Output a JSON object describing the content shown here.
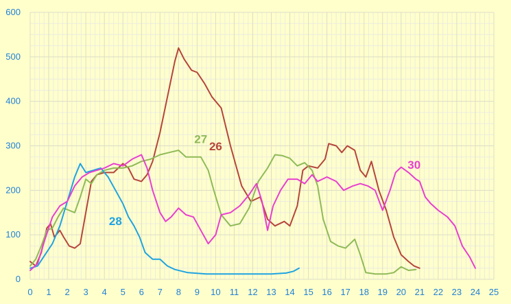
{
  "chart_data": {
    "type": "line",
    "title": "",
    "xlabel": "",
    "ylabel": "",
    "xlim": [
      0,
      25
    ],
    "ylim": [
      0,
      600
    ],
    "xticks": [
      0,
      1,
      2,
      3,
      4,
      5,
      6,
      7,
      8,
      9,
      10,
      11,
      12,
      13,
      14,
      15,
      16,
      17,
      18,
      19,
      20,
      21,
      22,
      23,
      24,
      25
    ],
    "yticks": [
      0,
      100,
      200,
      300,
      400,
      500,
      600
    ],
    "grid": true,
    "minor_grid": true,
    "legend": "none",
    "colors": {
      "background": "#ffffcc",
      "grid_major": "#dcdcc8",
      "grid_minor": "#ecece0",
      "tick_text": "#1f7fd6"
    },
    "series": [
      {
        "name": "26",
        "color": "#b5453a",
        "label_at": [
          10.0,
          290
        ],
        "points": [
          [
            0,
            40
          ],
          [
            0.3,
            30
          ],
          [
            0.6,
            60
          ],
          [
            0.9,
            115
          ],
          [
            1.1,
            125
          ],
          [
            1.3,
            95
          ],
          [
            1.6,
            110
          ],
          [
            1.8,
            95
          ],
          [
            2.1,
            75
          ],
          [
            2.4,
            70
          ],
          [
            2.7,
            80
          ],
          [
            3.0,
            150
          ],
          [
            3.3,
            220
          ],
          [
            3.6,
            235
          ],
          [
            4.0,
            240
          ],
          [
            4.5,
            240
          ],
          [
            5.0,
            260
          ],
          [
            5.3,
            250
          ],
          [
            5.6,
            225
          ],
          [
            6.0,
            220
          ],
          [
            6.3,
            235
          ],
          [
            6.6,
            265
          ],
          [
            7.0,
            330
          ],
          [
            7.4,
            410
          ],
          [
            7.8,
            490
          ],
          [
            8.0,
            520
          ],
          [
            8.3,
            495
          ],
          [
            8.7,
            470
          ],
          [
            9.0,
            465
          ],
          [
            9.4,
            440
          ],
          [
            9.8,
            410
          ],
          [
            10.3,
            385
          ],
          [
            10.8,
            300
          ],
          [
            11.4,
            210
          ],
          [
            11.9,
            175
          ],
          [
            12.4,
            185
          ],
          [
            12.8,
            135
          ],
          [
            13.2,
            120
          ],
          [
            13.7,
            130
          ],
          [
            14.0,
            120
          ],
          [
            14.4,
            165
          ],
          [
            14.7,
            245
          ],
          [
            15.0,
            255
          ],
          [
            15.5,
            250
          ],
          [
            15.9,
            270
          ],
          [
            16.1,
            305
          ],
          [
            16.5,
            300
          ],
          [
            16.8,
            285
          ],
          [
            17.1,
            300
          ],
          [
            17.5,
            290
          ],
          [
            17.8,
            245
          ],
          [
            18.1,
            230
          ],
          [
            18.4,
            265
          ],
          [
            18.8,
            200
          ],
          [
            19.2,
            155
          ],
          [
            19.6,
            95
          ],
          [
            20.0,
            55
          ],
          [
            20.4,
            40
          ],
          [
            20.7,
            30
          ],
          [
            21.0,
            25
          ]
        ]
      },
      {
        "name": "27",
        "color": "#8fba57",
        "label_at": [
          9.2,
          306
        ],
        "points": [
          [
            0,
            30
          ],
          [
            0.3,
            45
          ],
          [
            0.6,
            75
          ],
          [
            0.9,
            110
          ],
          [
            1.2,
            115
          ],
          [
            1.5,
            140
          ],
          [
            1.8,
            160
          ],
          [
            2.1,
            155
          ],
          [
            2.4,
            150
          ],
          [
            2.7,
            185
          ],
          [
            3.0,
            225
          ],
          [
            3.3,
            215
          ],
          [
            3.6,
            235
          ],
          [
            4.0,
            245
          ],
          [
            4.5,
            250
          ],
          [
            5.0,
            250
          ],
          [
            5.5,
            255
          ],
          [
            6.0,
            265
          ],
          [
            6.5,
            270
          ],
          [
            7.0,
            280
          ],
          [
            7.5,
            285
          ],
          [
            8.0,
            290
          ],
          [
            8.4,
            275
          ],
          [
            8.8,
            275
          ],
          [
            9.2,
            275
          ],
          [
            9.6,
            245
          ],
          [
            9.9,
            200
          ],
          [
            10.3,
            145
          ],
          [
            10.8,
            120
          ],
          [
            11.3,
            125
          ],
          [
            11.8,
            160
          ],
          [
            12.3,
            220
          ],
          [
            12.8,
            250
          ],
          [
            13.2,
            280
          ],
          [
            13.6,
            278
          ],
          [
            14.0,
            272
          ],
          [
            14.4,
            255
          ],
          [
            14.8,
            262
          ],
          [
            15.2,
            245
          ],
          [
            15.5,
            210
          ],
          [
            15.8,
            135
          ],
          [
            16.2,
            85
          ],
          [
            16.6,
            75
          ],
          [
            17.0,
            70
          ],
          [
            17.5,
            90
          ],
          [
            17.8,
            55
          ],
          [
            18.1,
            15
          ],
          [
            18.6,
            12
          ],
          [
            19.2,
            12
          ],
          [
            19.6,
            15
          ],
          [
            20.0,
            28
          ],
          [
            20.4,
            20
          ],
          [
            20.8,
            22
          ]
        ]
      },
      {
        "name": "28",
        "color": "#1fa3e0",
        "label_at": [
          4.6,
          122
        ],
        "points": [
          [
            0,
            25
          ],
          [
            0.4,
            30
          ],
          [
            0.8,
            55
          ],
          [
            1.2,
            80
          ],
          [
            1.6,
            120
          ],
          [
            2.0,
            175
          ],
          [
            2.4,
            230
          ],
          [
            2.7,
            260
          ],
          [
            3.0,
            240
          ],
          [
            3.4,
            245
          ],
          [
            3.8,
            250
          ],
          [
            4.2,
            230
          ],
          [
            4.6,
            200
          ],
          [
            5.0,
            170
          ],
          [
            5.3,
            140
          ],
          [
            5.6,
            120
          ],
          [
            5.9,
            95
          ],
          [
            6.2,
            60
          ],
          [
            6.6,
            45
          ],
          [
            7.0,
            45
          ],
          [
            7.4,
            30
          ],
          [
            7.8,
            22
          ],
          [
            8.5,
            15
          ],
          [
            9.5,
            12
          ],
          [
            11.0,
            12
          ],
          [
            12.0,
            12
          ],
          [
            13.0,
            12
          ],
          [
            13.8,
            14
          ],
          [
            14.2,
            18
          ],
          [
            14.5,
            25
          ]
        ]
      },
      {
        "name": "30",
        "color": "#e83fcf",
        "label_at": [
          20.7,
          248
        ],
        "points": [
          [
            0,
            20
          ],
          [
            0.4,
            35
          ],
          [
            0.8,
            90
          ],
          [
            1.2,
            140
          ],
          [
            1.6,
            165
          ],
          [
            2.0,
            175
          ],
          [
            2.4,
            210
          ],
          [
            2.8,
            230
          ],
          [
            3.2,
            240
          ],
          [
            3.6,
            245
          ],
          [
            4.0,
            250
          ],
          [
            4.5,
            260
          ],
          [
            5.0,
            255
          ],
          [
            5.5,
            270
          ],
          [
            6.0,
            280
          ],
          [
            6.3,
            250
          ],
          [
            6.6,
            200
          ],
          [
            7.0,
            150
          ],
          [
            7.3,
            130
          ],
          [
            7.6,
            140
          ],
          [
            8.0,
            160
          ],
          [
            8.4,
            145
          ],
          [
            8.8,
            140
          ],
          [
            9.2,
            110
          ],
          [
            9.6,
            80
          ],
          [
            10.0,
            100
          ],
          [
            10.3,
            145
          ],
          [
            10.8,
            150
          ],
          [
            11.3,
            165
          ],
          [
            11.8,
            190
          ],
          [
            12.2,
            215
          ],
          [
            12.5,
            175
          ],
          [
            12.8,
            110
          ],
          [
            13.1,
            165
          ],
          [
            13.5,
            200
          ],
          [
            13.9,
            225
          ],
          [
            14.4,
            225
          ],
          [
            14.8,
            215
          ],
          [
            15.2,
            235
          ],
          [
            15.5,
            220
          ],
          [
            16.0,
            230
          ],
          [
            16.5,
            220
          ],
          [
            16.9,
            200
          ],
          [
            17.4,
            210
          ],
          [
            17.8,
            215
          ],
          [
            18.2,
            210
          ],
          [
            18.6,
            200
          ],
          [
            19.0,
            155
          ],
          [
            19.4,
            200
          ],
          [
            19.7,
            240
          ],
          [
            20.0,
            252
          ],
          [
            20.4,
            240
          ],
          [
            20.8,
            225
          ],
          [
            21.0,
            220
          ],
          [
            21.3,
            185
          ],
          [
            21.6,
            170
          ],
          [
            22.0,
            155
          ],
          [
            22.5,
            140
          ],
          [
            22.9,
            120
          ],
          [
            23.3,
            75
          ],
          [
            23.7,
            50
          ],
          [
            24.0,
            25
          ]
        ]
      }
    ]
  }
}
